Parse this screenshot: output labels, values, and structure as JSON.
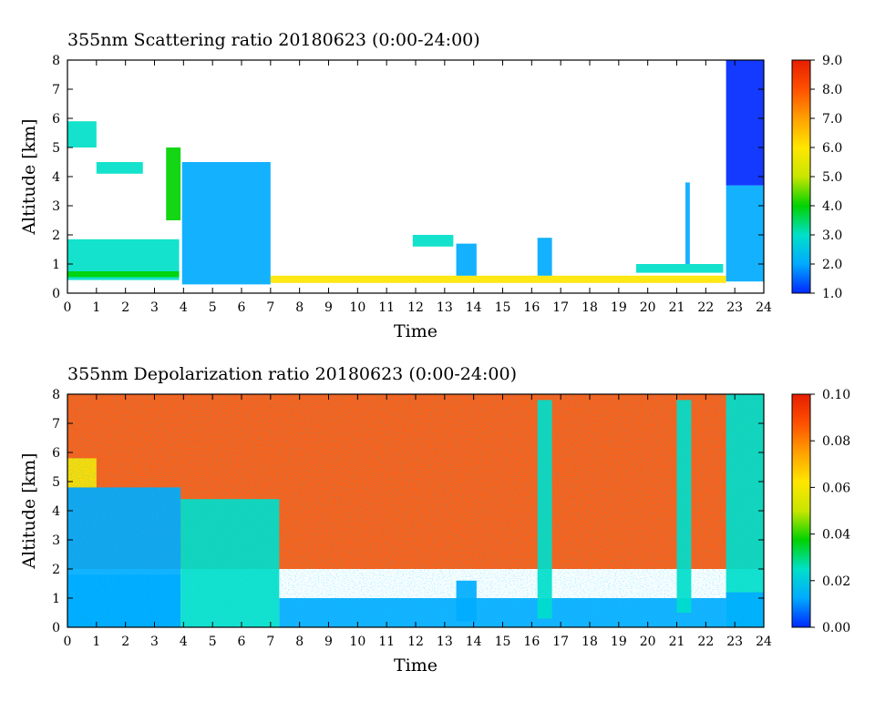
{
  "chart_data": [
    {
      "type": "heatmap",
      "title": "355nm Scattering ratio  20180623 (0:00-24:00)",
      "xlabel": "Time",
      "ylabel": "Altitude [km]",
      "x_ticks": [
        "0",
        "1",
        "2",
        "3",
        "4",
        "5",
        "6",
        "7",
        "8",
        "9",
        "10",
        "11",
        "12",
        "13",
        "14",
        "15",
        "16",
        "17",
        "18",
        "19",
        "20",
        "21",
        "22",
        "23",
        "24"
      ],
      "y_ticks": [
        "0",
        "1",
        "2",
        "3",
        "4",
        "5",
        "6",
        "7",
        "8"
      ],
      "xlim": [
        0,
        24
      ],
      "ylim": [
        0,
        8
      ],
      "colorbar": {
        "range": [
          1.0,
          9.0
        ],
        "ticks": [
          "1.0",
          "2.0",
          "3.0",
          "4.0",
          "5.0",
          "6.0",
          "7.0",
          "8.0",
          "9.0"
        ],
        "colormap": [
          "#0028ff",
          "#00aaff",
          "#00e0c8",
          "#00d200",
          "#c8e600",
          "#ffe600",
          "#ffa000",
          "#ff5000",
          "#e61e00"
        ]
      },
      "features": [
        {
          "t0": 0.0,
          "t1": 3.85,
          "z0": 0.45,
          "z1": 1.85,
          "value": 2.6
        },
        {
          "t0": 0.0,
          "t1": 3.85,
          "z0": 0.55,
          "z1": 0.75,
          "value": 4.0
        },
        {
          "t0": 0.0,
          "t1": 1.0,
          "z0": 5.0,
          "z1": 5.9,
          "value": 2.5
        },
        {
          "t0": 1.0,
          "t1": 2.6,
          "z0": 4.1,
          "z1": 4.5,
          "value": 3.0
        },
        {
          "t0": 3.4,
          "t1": 3.9,
          "z0": 2.5,
          "z1": 5.0,
          "value": 3.5
        },
        {
          "t0": 3.95,
          "t1": 7.0,
          "z0": 0.3,
          "z1": 4.5,
          "value": 2.0
        },
        {
          "t0": 7.0,
          "t1": 22.7,
          "z0": 0.35,
          "z1": 0.6,
          "value": 6.0
        },
        {
          "t0": 11.9,
          "t1": 13.3,
          "z0": 1.6,
          "z1": 2.0,
          "value": 3.0
        },
        {
          "t0": 13.4,
          "t1": 14.1,
          "z0": 0.6,
          "z1": 1.7,
          "value": 2.3
        },
        {
          "t0": 16.2,
          "t1": 16.7,
          "z0": 0.6,
          "z1": 1.9,
          "value": 2.2
        },
        {
          "t0": 19.6,
          "t1": 22.6,
          "z0": 0.7,
          "z1": 1.0,
          "value": 2.5
        },
        {
          "t0": 21.3,
          "t1": 21.45,
          "z0": 1.0,
          "z1": 3.8,
          "value": 2.0
        },
        {
          "t0": 22.7,
          "t1": 24.0,
          "z0": 0.4,
          "z1": 3.7,
          "value": 1.9
        },
        {
          "t0": 22.7,
          "t1": 24.0,
          "z0": 3.7,
          "z1": 8.0,
          "value": 1.4
        }
      ]
    },
    {
      "type": "heatmap",
      "title": "355nm Depolarization ratio  20180623 (0:00-24:00)",
      "xlabel": "Time",
      "ylabel": "Altitude [km]",
      "x_ticks": [
        "0",
        "1",
        "2",
        "3",
        "4",
        "5",
        "6",
        "7",
        "8",
        "9",
        "10",
        "11",
        "12",
        "13",
        "14",
        "15",
        "16",
        "17",
        "18",
        "19",
        "20",
        "21",
        "22",
        "23",
        "24"
      ],
      "y_ticks": [
        "0",
        "1",
        "2",
        "3",
        "4",
        "5",
        "6",
        "7",
        "8"
      ],
      "xlim": [
        0,
        24
      ],
      "ylim": [
        0,
        8
      ],
      "colorbar": {
        "range": [
          0.0,
          0.1
        ],
        "ticks": [
          "0.00",
          "0.02",
          "0.04",
          "0.06",
          "0.08",
          "0.10"
        ],
        "colormap": [
          "#0028ff",
          "#00aaff",
          "#00e0c8",
          "#00d200",
          "#c8e600",
          "#ffe600",
          "#ffa000",
          "#ff5000",
          "#e61e00"
        ]
      },
      "features": [
        {
          "t0": 0.0,
          "t1": 24.0,
          "z0": 2.0,
          "z1": 8.0,
          "value": 0.085
        },
        {
          "t0": 0.0,
          "t1": 3.9,
          "z0": 0.0,
          "z1": 4.8,
          "value": 0.015
        },
        {
          "t0": 0.0,
          "t1": 3.9,
          "z0": 0.0,
          "z1": 1.8,
          "value": 0.008
        },
        {
          "t0": 0.0,
          "t1": 1.0,
          "z0": 4.8,
          "z1": 5.8,
          "value": 0.065
        },
        {
          "t0": 3.9,
          "t1": 7.3,
          "z0": 0.0,
          "z1": 4.4,
          "value": 0.025
        },
        {
          "t0": 7.3,
          "t1": 22.7,
          "z0": 0.0,
          "z1": 1.0,
          "value": 0.012
        },
        {
          "t0": 13.4,
          "t1": 14.1,
          "z0": 0.2,
          "z1": 1.6,
          "value": 0.01
        },
        {
          "t0": 16.2,
          "t1": 16.7,
          "z0": 0.3,
          "z1": 7.8,
          "value": 0.02
        },
        {
          "t0": 21.0,
          "t1": 21.5,
          "z0": 0.5,
          "z1": 7.8,
          "value": 0.02
        },
        {
          "t0": 22.7,
          "t1": 24.0,
          "z0": 0.0,
          "z1": 8.0,
          "value": 0.028
        },
        {
          "t0": 22.7,
          "t1": 24.0,
          "z0": 0.0,
          "z1": 1.2,
          "value": 0.012
        }
      ]
    }
  ]
}
